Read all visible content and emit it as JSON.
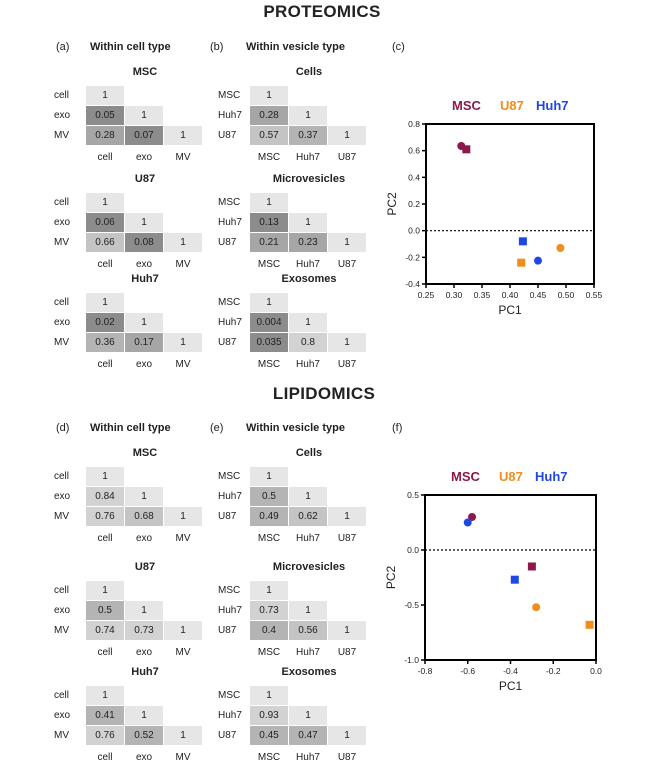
{
  "titles": {
    "proteomics": "PROTEOMICS",
    "lipidomics": "LIPIDOMICS"
  },
  "panels": {
    "a": {
      "label": "(a)",
      "title": "Within cell type"
    },
    "b": {
      "label": "(b)",
      "title": "Within vesicle type"
    },
    "c": {
      "label": "(c)"
    },
    "d": {
      "label": "(d)",
      "title": "Within cell type"
    },
    "e": {
      "label": "(e)",
      "title": "Within vesicle type"
    },
    "f": {
      "label": "(f)"
    }
  },
  "chart_data": [
    {
      "type": "table",
      "id": "a1",
      "title": "MSC",
      "rows": [
        "cell",
        "exo",
        "MV"
      ],
      "cols": [
        "cell",
        "exo",
        "MV"
      ],
      "values": [
        [
          "1"
        ],
        [
          "0.05",
          "1"
        ],
        [
          "0.28",
          "0.07",
          "1"
        ]
      ]
    },
    {
      "type": "table",
      "id": "a2",
      "title": "U87",
      "rows": [
        "cell",
        "exo",
        "MV"
      ],
      "cols": [
        "cell",
        "exo",
        "MV"
      ],
      "values": [
        [
          "1"
        ],
        [
          "0.06",
          "1"
        ],
        [
          "0.66",
          "0.08",
          "1"
        ]
      ]
    },
    {
      "type": "table",
      "id": "a3",
      "title": "Huh7",
      "rows": [
        "cell",
        "exo",
        "MV"
      ],
      "cols": [
        "cell",
        "exo",
        "MV"
      ],
      "values": [
        [
          "1"
        ],
        [
          "0.02",
          "1"
        ],
        [
          "0.36",
          "0.17",
          "1"
        ]
      ]
    },
    {
      "type": "table",
      "id": "b1",
      "title": "Cells",
      "rows": [
        "MSC",
        "Huh7",
        "U87"
      ],
      "cols": [
        "MSC",
        "Huh7",
        "U87"
      ],
      "values": [
        [
          "1"
        ],
        [
          "0.28",
          "1"
        ],
        [
          "0.57",
          "0.37",
          "1"
        ]
      ]
    },
    {
      "type": "table",
      "id": "b2",
      "title": "Microvesicles",
      "rows": [
        "MSC",
        "Huh7",
        "U87"
      ],
      "cols": [
        "MSC",
        "Huh7",
        "U87"
      ],
      "values": [
        [
          "1"
        ],
        [
          "0.13",
          "1"
        ],
        [
          "0.21",
          "0.23",
          "1"
        ]
      ]
    },
    {
      "type": "table",
      "id": "b3",
      "title": "Exosomes",
      "rows": [
        "MSC",
        "Huh7",
        "U87"
      ],
      "cols": [
        "MSC",
        "Huh7",
        "U87"
      ],
      "values": [
        [
          "1"
        ],
        [
          "0.004",
          "1"
        ],
        [
          "0.035",
          "0.8",
          "1"
        ]
      ]
    },
    {
      "type": "scatter",
      "id": "c",
      "xlabel": "PC1",
      "ylabel": "PC2",
      "xlim": [
        0.25,
        0.55
      ],
      "ylim": [
        -0.4,
        0.8
      ],
      "xticks": [
        "0.25",
        "0.30",
        "0.35",
        "0.40",
        "0.45",
        "0.50",
        "0.55"
      ],
      "yticks": [
        "-0.4",
        "-0.2",
        "0.0",
        "0.2",
        "0.4",
        "0.6",
        "0.8"
      ],
      "legend": [
        "MSC",
        "U87",
        "Huh7"
      ],
      "legend_position": "top",
      "colors": {
        "MSC": "#8b1a4a",
        "U87": "#f28c1c",
        "Huh7": "#1f47e6"
      },
      "zero_line": "dotted",
      "points": [
        {
          "series": "MSC",
          "marker": "circle",
          "x": 0.313,
          "y": 0.635
        },
        {
          "series": "MSC",
          "marker": "square",
          "x": 0.322,
          "y": 0.61
        },
        {
          "series": "Huh7",
          "marker": "square",
          "x": 0.423,
          "y": -0.08
        },
        {
          "series": "Huh7",
          "marker": "circle",
          "x": 0.45,
          "y": -0.225
        },
        {
          "series": "U87",
          "marker": "square",
          "x": 0.42,
          "y": -0.24
        },
        {
          "series": "U87",
          "marker": "circle",
          "x": 0.49,
          "y": -0.13
        }
      ]
    },
    {
      "type": "table",
      "id": "d1",
      "title": "MSC",
      "rows": [
        "cell",
        "exo",
        "MV"
      ],
      "cols": [
        "cell",
        "exo",
        "MV"
      ],
      "values": [
        [
          "1"
        ],
        [
          "0.84",
          "1"
        ],
        [
          "0.76",
          "0.68",
          "1"
        ]
      ]
    },
    {
      "type": "table",
      "id": "d2",
      "title": "U87",
      "rows": [
        "cell",
        "exo",
        "MV"
      ],
      "cols": [
        "cell",
        "exo",
        "MV"
      ],
      "values": [
        [
          "1"
        ],
        [
          "0.5",
          "1"
        ],
        [
          "0.74",
          "0.73",
          "1"
        ]
      ]
    },
    {
      "type": "table",
      "id": "d3",
      "title": "Huh7",
      "rows": [
        "cell",
        "exo",
        "MV"
      ],
      "cols": [
        "cell",
        "exo",
        "MV"
      ],
      "values": [
        [
          "1"
        ],
        [
          "0.41",
          "1"
        ],
        [
          "0.76",
          "0.52",
          "1"
        ]
      ]
    },
    {
      "type": "table",
      "id": "e1",
      "title": "Cells",
      "rows": [
        "MSC",
        "Huh7",
        "U87"
      ],
      "cols": [
        "MSC",
        "Huh7",
        "U87"
      ],
      "values": [
        [
          "1"
        ],
        [
          "0.5",
          "1"
        ],
        [
          "0.49",
          "0.62",
          "1"
        ]
      ]
    },
    {
      "type": "table",
      "id": "e2",
      "title": "Microvesicles",
      "rows": [
        "MSC",
        "Huh7",
        "U87"
      ],
      "cols": [
        "MSC",
        "Huh7",
        "U87"
      ],
      "values": [
        [
          "1"
        ],
        [
          "0.73",
          "1"
        ],
        [
          "0.4",
          "0.56",
          "1"
        ]
      ]
    },
    {
      "type": "table",
      "id": "e3",
      "title": "Exosomes",
      "rows": [
        "MSC",
        "Huh7",
        "U87"
      ],
      "cols": [
        "MSC",
        "Huh7",
        "U87"
      ],
      "values": [
        [
          "1"
        ],
        [
          "0.93",
          "1"
        ],
        [
          "0.45",
          "0.47",
          "1"
        ]
      ]
    },
    {
      "type": "scatter",
      "id": "f",
      "xlabel": "PC1",
      "ylabel": "PC2",
      "xlim": [
        -0.8,
        0.0
      ],
      "ylim": [
        -1.0,
        0.5
      ],
      "xticks": [
        "-0.8",
        "-0.6",
        "-0.4",
        "-0.2",
        "0.0"
      ],
      "yticks": [
        "-1.0",
        "-0.5",
        "0.0",
        "0.5"
      ],
      "legend": [
        "MSC",
        "U87",
        "Huh7"
      ],
      "legend_position": "top",
      "colors": {
        "MSC": "#8b1a4a",
        "U87": "#f28c1c",
        "Huh7": "#1f47e6"
      },
      "zero_line": "dotted",
      "points": [
        {
          "series": "MSC",
          "marker": "circle",
          "x": -0.58,
          "y": 0.3
        },
        {
          "series": "MSC",
          "marker": "square",
          "x": -0.3,
          "y": -0.15
        },
        {
          "series": "Huh7",
          "marker": "circle",
          "x": -0.6,
          "y": 0.25
        },
        {
          "series": "Huh7",
          "marker": "square",
          "x": -0.38,
          "y": -0.27
        },
        {
          "series": "U87",
          "marker": "circle",
          "x": -0.28,
          "y": -0.52
        },
        {
          "series": "U87",
          "marker": "square",
          "x": -0.03,
          "y": -0.68
        }
      ]
    }
  ]
}
